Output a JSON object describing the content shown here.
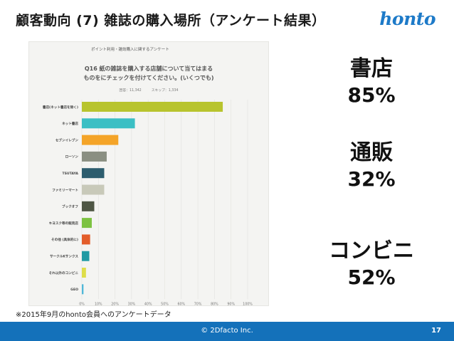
{
  "slide": {
    "title": "顧客動向 (7) 雑誌の購入場所（アンケート結果）",
    "logo": "honto",
    "footnote": "※2015年9月のhonto会員へのアンケートデータ",
    "copyright": "© 2Dfacto Inc.",
    "page_number": "17"
  },
  "stats": [
    {
      "label": "書店",
      "value": "85%"
    },
    {
      "label": "通販",
      "value": "32%"
    },
    {
      "label": "コンビニ",
      "value": "52%"
    }
  ],
  "chart_header": "ポイント利用・雑誌購入に関するアンケート",
  "chart_meta": {
    "respondents": "回答：11,342",
    "skips": "スキップ：1,334"
  },
  "colors": {
    "footer": "#1471ba",
    "logo": "#1d7ac8"
  },
  "chart_data": {
    "type": "bar",
    "orientation": "horizontal",
    "title": "Q16 紙の雑誌を購入する店舗について当てはまるものをにチェックを付けてください。(いくつでも)",
    "title_lines": [
      "Q16 紙の雑誌を購入する店舗について当てはまる",
      "ものをにチェックを付けてください。(いくつでも)"
    ],
    "categories": [
      "書店(ネット書店を除く)",
      "ネット書店",
      "セブンイレブン",
      "ローソン",
      "TSUTAYA",
      "ファミリーマート",
      "ブックオフ",
      "キヨスク等の販売店",
      "その他 (具体的に)",
      "サークルKサンクス",
      "それ以外のコンビニ",
      "GEO"
    ],
    "values": [
      85,
      32,
      22,
      15,
      13.5,
      13.5,
      7.5,
      6,
      5,
      4.5,
      2.5,
      1
    ],
    "bar_colors": [
      "#b8c42e",
      "#3bbfc4",
      "#f4a428",
      "#8a8f82",
      "#2d5d6e",
      "#c8c9b9",
      "#4e5644",
      "#7dc242",
      "#e35d2a",
      "#1f9aa3",
      "#dede4a",
      "#4fb7d8"
    ],
    "xlim": [
      0,
      100
    ],
    "xticks": [
      "0%",
      "10%",
      "20%",
      "30%",
      "40%",
      "50%",
      "60%",
      "70%",
      "80%",
      "90%",
      "100%"
    ],
    "grid": true
  }
}
